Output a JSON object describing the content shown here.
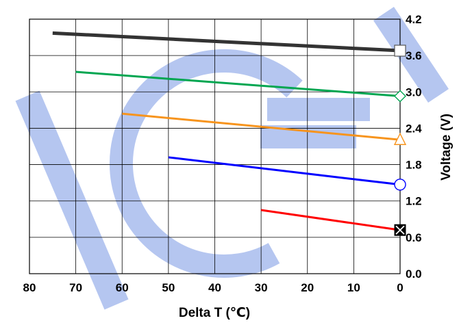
{
  "chart_data": {
    "type": "line",
    "xlabel": "Delta T (℃)",
    "ylabel": "Voltage (V)",
    "xlim": [
      80,
      0
    ],
    "ylim": [
      0.0,
      4.2
    ],
    "x_ticks": [
      "80",
      "70",
      "60",
      "50",
      "40",
      "30",
      "20",
      "10",
      "0"
    ],
    "y_ticks": [
      "0.0",
      "0.6",
      "1.2",
      "1.8",
      "2.4",
      "3.0",
      "3.6",
      "4.2"
    ],
    "grid": true,
    "series": [
      {
        "color": "#333333",
        "marker": "square",
        "x": [
          75,
          0
        ],
        "y": [
          3.97,
          3.68
        ]
      },
      {
        "color": "#00a651",
        "marker": "diamond",
        "x": [
          70,
          0
        ],
        "y": [
          3.33,
          2.93
        ]
      },
      {
        "color": "#f7941d",
        "marker": "triangle",
        "x": [
          60,
          0
        ],
        "y": [
          2.64,
          2.21
        ]
      },
      {
        "color": "#0000ff",
        "marker": "circle",
        "x": [
          50,
          0
        ],
        "y": [
          1.92,
          1.47
        ]
      },
      {
        "color": "#ff0000",
        "marker": "box-x",
        "x": [
          30,
          0
        ],
        "y": [
          1.05,
          0.72
        ]
      }
    ]
  }
}
